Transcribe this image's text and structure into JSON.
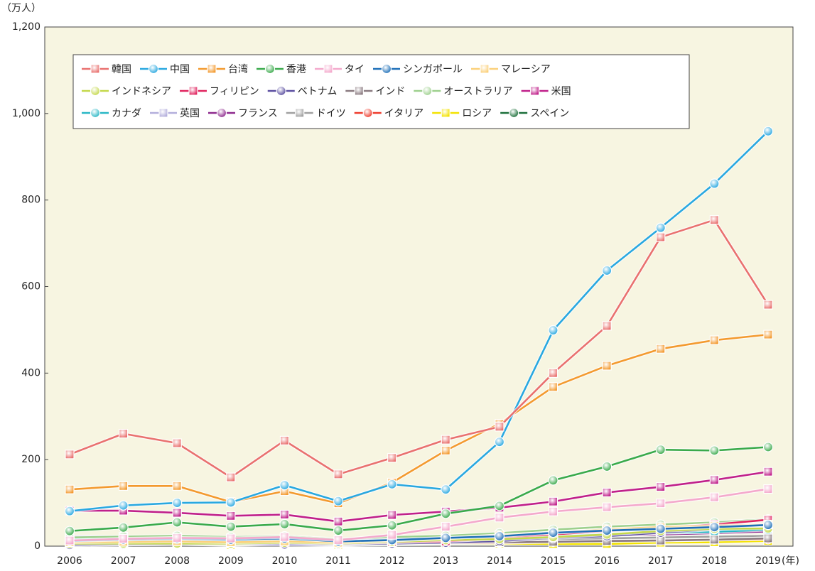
{
  "chart_data": {
    "type": "line",
    "y_unit": "（万人）",
    "x_unit": "(年)",
    "categories": [
      "2006",
      "2007",
      "2008",
      "2009",
      "2010",
      "2011",
      "2012",
      "2013",
      "2014",
      "2015",
      "2016",
      "2017",
      "2018",
      "2019"
    ],
    "ylim": [
      0,
      1200
    ],
    "yticks": [
      0,
      200,
      400,
      600,
      800,
      {
        "value": 1000,
        "label": "1,000"
      },
      {
        "value": 1200,
        "label": "1,200"
      }
    ],
    "grid": false,
    "legend": "top-left",
    "series": [
      {
        "name": "韓国",
        "color": "#e9716f",
        "marker": "square",
        "values": [
          212,
          260,
          238,
          159,
          244,
          166,
          204,
          246,
          276,
          400,
          509,
          714,
          754,
          558
        ]
      },
      {
        "name": "中国",
        "color": "#29a8e0",
        "marker": "circle",
        "values": [
          81,
          94,
          100,
          101,
          141,
          104,
          143,
          131,
          241,
          499,
          637,
          736,
          838,
          959
        ]
      },
      {
        "name": "台湾",
        "color": "#f39a2f",
        "marker": "square",
        "values": [
          131,
          139,
          139,
          102,
          127,
          99,
          147,
          221,
          283,
          368,
          417,
          456,
          476,
          489
        ]
      },
      {
        "name": "香港",
        "color": "#3aaa4b",
        "marker": "circle",
        "values": [
          35,
          43,
          55,
          45,
          51,
          36,
          48,
          75,
          93,
          152,
          184,
          223,
          221,
          229
        ]
      },
      {
        "name": "タイ",
        "color": "#f4a9cc",
        "marker": "square",
        "values": [
          13,
          17,
          19,
          18,
          21,
          14,
          26,
          45,
          66,
          80,
          90,
          99,
          113,
          132
        ]
      },
      {
        "name": "シンガポール",
        "color": "#1e6fb8",
        "marker": "circle",
        "values": [
          12,
          15,
          17,
          15,
          18,
          11,
          14,
          19,
          23,
          31,
          36,
          40,
          44,
          49
        ]
      },
      {
        "name": "マレーシア",
        "color": "#fbd07a",
        "marker": "square",
        "values": [
          9,
          10,
          11,
          9,
          11,
          8,
          13,
          18,
          25,
          31,
          39,
          44,
          47,
          50
        ]
      },
      {
        "name": "インドネシア",
        "color": "#c4d84a",
        "marker": "circle",
        "values": [
          6,
          6,
          6,
          6,
          8,
          6,
          10,
          14,
          16,
          21,
          27,
          35,
          40,
          41
        ]
      },
      {
        "name": "フィリピン",
        "color": "#e0245f",
        "marker": "square",
        "values": [
          10,
          9,
          8,
          7,
          8,
          6,
          9,
          11,
          18,
          27,
          35,
          42,
          50,
          61
        ]
      },
      {
        "name": "ベトナム",
        "color": "#5a4ea0",
        "marker": "circle",
        "values": [
          3,
          4,
          5,
          5,
          4,
          4,
          6,
          8,
          12,
          19,
          23,
          31,
          39,
          50
        ]
      },
      {
        "name": "インド",
        "color": "#8a7a80",
        "marker": "square",
        "values": [
          6,
          7,
          7,
          6,
          7,
          6,
          7,
          8,
          9,
          10,
          12,
          13,
          15,
          18
        ]
      },
      {
        "name": "オーストラリア",
        "color": "#9dd08d",
        "marker": "circle",
        "values": [
          20,
          22,
          24,
          21,
          23,
          16,
          21,
          24,
          30,
          38,
          45,
          50,
          55,
          62
        ]
      },
      {
        "name": "米国",
        "color": "#c0208a",
        "marker": "square",
        "values": [
          82,
          82,
          77,
          70,
          73,
          57,
          72,
          80,
          89,
          103,
          124,
          137,
          153,
          172
        ]
      },
      {
        "name": "カナダ",
        "color": "#29b7c5",
        "marker": "circle",
        "values": [
          16,
          17,
          17,
          15,
          15,
          10,
          14,
          15,
          18,
          23,
          27,
          31,
          33,
          38
        ]
      },
      {
        "name": "英国",
        "color": "#b3aedc",
        "marker": "square",
        "values": [
          22,
          22,
          21,
          18,
          18,
          14,
          17,
          19,
          22,
          26,
          29,
          31,
          33,
          42
        ]
      },
      {
        "name": "フランス",
        "color": "#8e2a8e",
        "marker": "circle",
        "values": [
          18,
          19,
          15,
          16,
          15,
          10,
          13,
          15,
          18,
          21,
          25,
          27,
          30,
          34
        ]
      },
      {
        "name": "ドイツ",
        "color": "#a0a0a0",
        "marker": "square",
        "values": [
          12,
          13,
          13,
          12,
          12,
          8,
          11,
          12,
          14,
          16,
          18,
          20,
          22,
          24
        ]
      },
      {
        "name": "イタリア",
        "color": "#ee3b2c",
        "marker": "circle",
        "values": [
          7,
          7,
          7,
          6,
          6,
          4,
          7,
          7,
          8,
          10,
          12,
          13,
          15,
          16
        ]
      },
      {
        "name": "ロシア",
        "color": "#f3e200",
        "marker": "square",
        "values": [
          5,
          6,
          5,
          3,
          5,
          3,
          5,
          6,
          6,
          5,
          5,
          8,
          9,
          12
        ]
      },
      {
        "name": "スペイン",
        "color": "#1c6f3a",
        "marker": "circle",
        "values": [
          4,
          4,
          5,
          4,
          4,
          3,
          4,
          5,
          6,
          8,
          9,
          10,
          12,
          13
        ]
      }
    ]
  }
}
